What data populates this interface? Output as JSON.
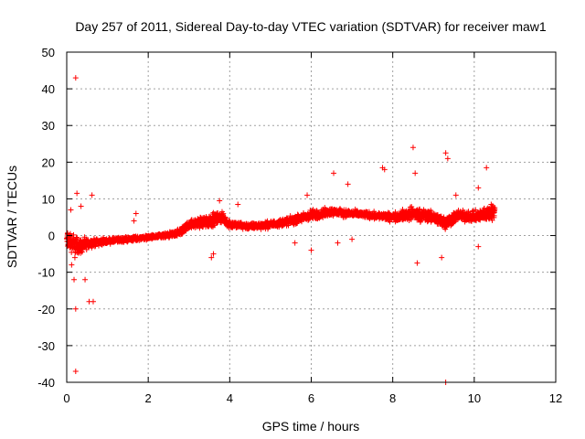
{
  "chart_data": {
    "type": "scatter",
    "title": "Day 257 of 2011, Sidereal Day-to-day VTEC variation (SDTVAR) for receiver maw1",
    "xlabel": "GPS time / hours",
    "ylabel": "SDTVAR / TECUs",
    "xlim": [
      0,
      12
    ],
    "ylim": [
      -40,
      50
    ],
    "grid": true,
    "xticks": [
      0,
      2,
      4,
      6,
      8,
      10,
      12
    ],
    "yticks": [
      -40,
      -30,
      -20,
      -10,
      0,
      10,
      20,
      30,
      40,
      50
    ],
    "xtick_labels": [
      "0",
      "2",
      "4",
      "6",
      "8",
      "10",
      "12"
    ],
    "ytick_labels": [
      "-40",
      "-30",
      "-20",
      "-10",
      "0",
      "10",
      "20",
      "30",
      "40",
      "50"
    ],
    "marker": "+",
    "series": [
      {
        "name": "maw1",
        "color": "#ff0000",
        "trend": {
          "x": [
            0.0,
            0.3,
            0.6,
            1.0,
            1.5,
            2.0,
            2.5,
            2.8,
            3.0,
            3.5,
            3.8,
            4.0,
            4.5,
            5.0,
            5.5,
            6.0,
            6.5,
            7.0,
            7.5,
            8.0,
            8.5,
            9.0,
            9.3,
            9.6,
            10.0,
            10.3,
            10.5
          ],
          "y": [
            -1.0,
            -3.0,
            -2.0,
            -1.5,
            -1.0,
            -0.5,
            0.0,
            1.0,
            3.0,
            4.0,
            5.0,
            3.0,
            2.5,
            3.0,
            4.0,
            5.5,
            6.5,
            6.0,
            5.5,
            5.0,
            6.0,
            5.0,
            3.5,
            5.5,
            5.0,
            6.0,
            6.5
          ],
          "spread": [
            4.0,
            3.0,
            1.5,
            1.0,
            1.0,
            0.8,
            1.0,
            1.5,
            1.5,
            2.5,
            2.0,
            1.5,
            1.2,
            1.3,
            1.5,
            2.0,
            1.5,
            1.3,
            1.3,
            1.5,
            2.5,
            2.0,
            2.5,
            2.0,
            2.0,
            2.5,
            3.5
          ]
        },
        "outliers": {
          "x": [
            0.22,
            0.22,
            0.22,
            0.18,
            0.25,
            0.55,
            0.65,
            0.35,
            0.1,
            0.2,
            0.12,
            0.62,
            0.45,
            1.65,
            1.7,
            3.55,
            3.6,
            3.75,
            4.2,
            5.6,
            5.9,
            6.0,
            6.55,
            6.9,
            6.65,
            7.0,
            7.75,
            7.8,
            8.5,
            8.55,
            8.6,
            9.3,
            9.35,
            9.3,
            9.2,
            9.55,
            10.1,
            10.3,
            10.1
          ],
          "y": [
            43,
            -37,
            -20,
            -12,
            11.5,
            -18,
            -18,
            8,
            7,
            -6,
            -8,
            11,
            -12,
            4,
            6,
            -6,
            -5,
            9.5,
            8.5,
            -2,
            11,
            -4,
            17,
            14,
            -2,
            -1,
            18.5,
            18,
            24,
            17,
            -7.5,
            22.5,
            21,
            -40,
            -6,
            11,
            13,
            18.5,
            -3
          ]
        }
      }
    ]
  }
}
